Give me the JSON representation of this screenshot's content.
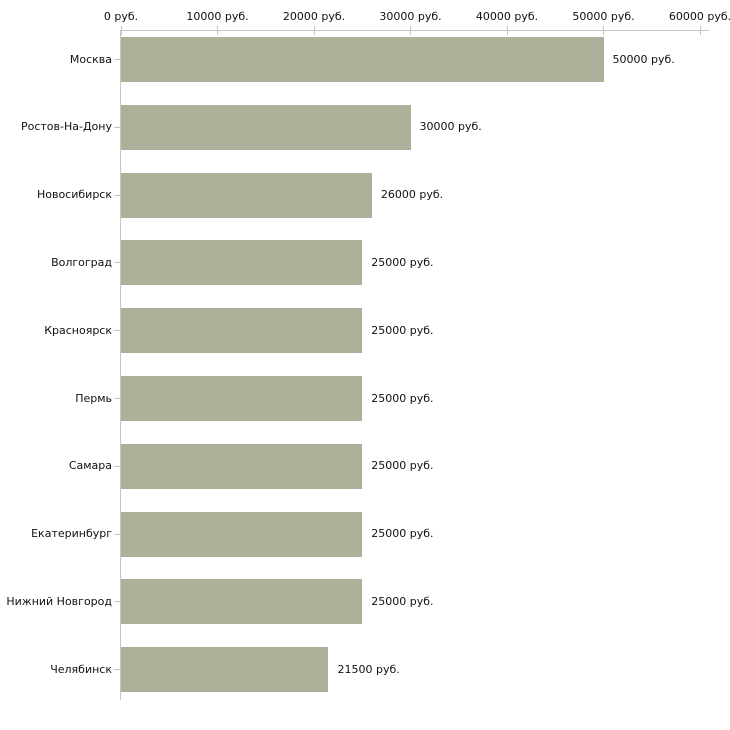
{
  "chart_data": {
    "type": "bar",
    "orientation": "horizontal",
    "title": "",
    "xlabel": "",
    "ylabel": "",
    "categories": [
      "Москва",
      "Ростов-На-Дону",
      "Новосибирск",
      "Волгоград",
      "Красноярск",
      "Пермь",
      "Самара",
      "Екатеринбург",
      "Нижний Новгород",
      "Челябинск"
    ],
    "values": [
      50000,
      30000,
      26000,
      25000,
      25000,
      25000,
      25000,
      25000,
      25000,
      21500
    ],
    "value_labels": [
      "50000 руб.",
      "30000 руб.",
      "26000 руб.",
      "25000 руб.",
      "25000 руб.",
      "25000 руб.",
      "25000 руб.",
      "25000 руб.",
      "25000 руб.",
      "21500 руб."
    ],
    "x_ticks": [
      0,
      10000,
      20000,
      30000,
      40000,
      50000,
      60000
    ],
    "x_tick_labels": [
      "0 руб.",
      "10000 руб.",
      "20000 руб.",
      "30000 руб.",
      "40000 руб.",
      "50000 руб.",
      "60000 руб."
    ],
    "xlim": [
      0,
      60000
    ],
    "grid": false,
    "legend": false,
    "colors": {
      "bar": "#acb299",
      "axis_line": "#c6c6c6",
      "tick_mark": "#c8c8aa",
      "text": "#111111",
      "background": "#ffffff"
    }
  }
}
